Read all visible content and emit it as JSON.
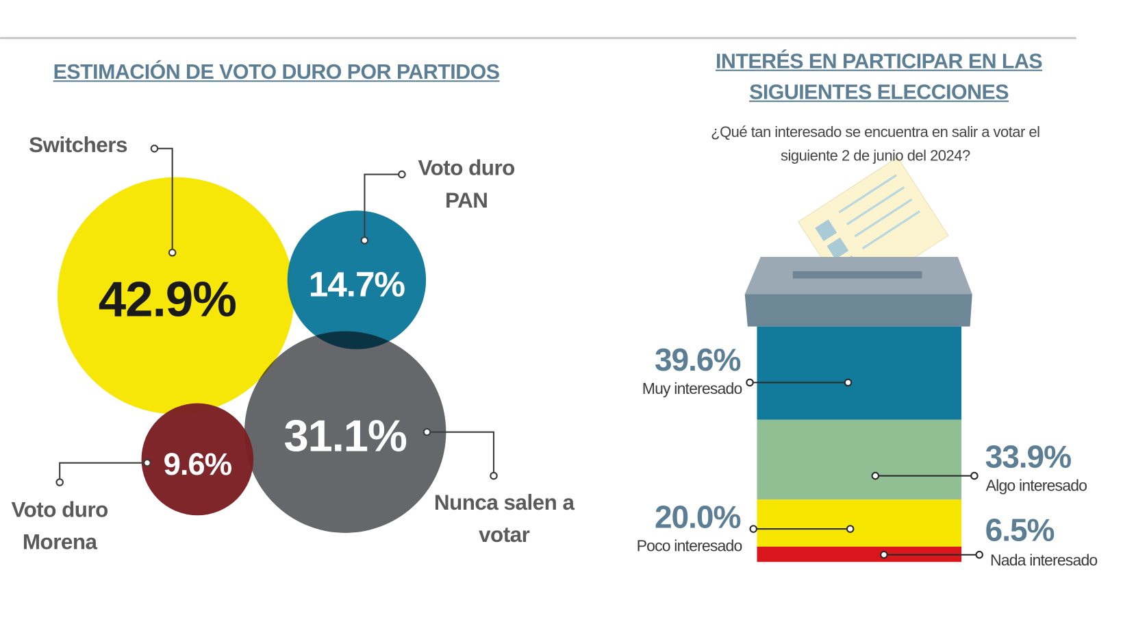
{
  "chart_data": [
    {
      "type": "bubble",
      "title": "ESTIMACIÓN DE VOTO DURO POR PARTIDOS",
      "categories": [
        "Switchers",
        "Voto duro PAN",
        "Nunca salen a votar",
        "Voto duro Morena"
      ],
      "values": [
        42.9,
        14.7,
        31.1,
        9.6
      ],
      "value_labels": [
        "42.9%",
        "14.7%",
        "31.1%",
        "9.6%"
      ],
      "colors": [
        "#f7e600",
        "#10799b",
        "#66676b",
        "#7a1f22"
      ]
    },
    {
      "type": "stacked_bar",
      "title": "INTERÉS EN PARTICIPAR EN LAS SIGUIENTES ELECCIONES",
      "subtitle": "¿Qué tan interesado se encuentra en salir a votar el siguiente 2 de junio del 2024?",
      "categories": [
        "Muy interesado",
        "Algo interesado",
        "Poco interesado",
        "Nada interesado"
      ],
      "values": [
        39.6,
        33.9,
        20.0,
        6.5
      ],
      "value_labels": [
        "39.6%",
        "33.9%",
        "20.0%",
        "6.5%"
      ],
      "colors": [
        "#127a9b",
        "#8fbf93",
        "#f7e600",
        "#d9161c"
      ]
    }
  ]
}
